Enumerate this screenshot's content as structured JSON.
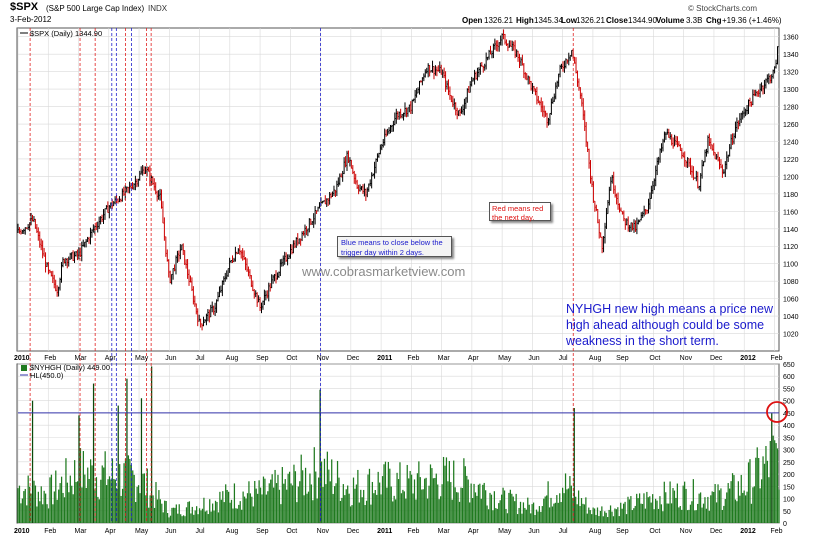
{
  "header": {
    "symbol": "$SPX",
    "description": "(S&P 500 Large Cap Index)",
    "exchange": "INDX",
    "date": "3-Feb-2012",
    "open_label": "Open",
    "open": "1326.21",
    "high_label": "High",
    "high": "1345.34",
    "low_label": "Low",
    "low": "1326.21",
    "close_label": "Close",
    "close": "1344.90",
    "volume_label": "Volume",
    "volume": "3.3B",
    "chg_label": "Chg",
    "chg": "+19.36 (+1.46%)",
    "watermark_site": "© StockCharts.com"
  },
  "colors": {
    "price_up": "#000000",
    "price_down": "#cc0000",
    "volume_bar": "#1f7a1f",
    "volume_bar_dark": "#0a4a0a",
    "red_marker": "#e02020",
    "blue_marker": "#2020cc",
    "threshold_line": "#3333aa",
    "grid": "#d9d9d9",
    "callout_text": "#1a1acc"
  },
  "annotations": {
    "watermark": "www.cobrasmarketview.com",
    "blue_note": "Blue means to close below the trigger day within 2 days.",
    "red_note": "Red means red the next day.",
    "main_note": "NYHGH new high means a price new high ahead although could be some weakness in the short term."
  },
  "chart_data": [
    {
      "type": "line",
      "title": "$SPX (Daily) 1344.90",
      "legend": [
        "$SPX (Daily) 1344.90"
      ],
      "y_axis_side": "right",
      "ylim": [
        1000,
        1370
      ],
      "yticks": [
        1020,
        1040,
        1060,
        1080,
        1100,
        1120,
        1140,
        1160,
        1180,
        1200,
        1220,
        1240,
        1260,
        1280,
        1300,
        1320,
        1340,
        1360
      ],
      "x_ticks": [
        "2010",
        "Feb",
        "Mar",
        "Apr",
        "May",
        "Jun",
        "Jul",
        "Aug",
        "Sep",
        "Oct",
        "Nov",
        "Dec",
        "2011",
        "Feb",
        "Mar",
        "Apr",
        "May",
        "Jun",
        "Jul",
        "Aug",
        "Sep",
        "Oct",
        "Nov",
        "Dec",
        "2012",
        "Feb"
      ],
      "x_tick_months": [
        0,
        1,
        2,
        3,
        4,
        5,
        6,
        7,
        8,
        9,
        10,
        11,
        12,
        13,
        14,
        15,
        16,
        17,
        18,
        19,
        19.9,
        21,
        22,
        23,
        24,
        25
      ],
      "x_months": [
        0,
        0.5,
        1,
        1.3,
        1.5,
        2,
        2.5,
        3,
        3.5,
        3.9,
        4.2,
        4.7,
        5,
        5.4,
        5.8,
        6,
        6.5,
        7,
        7.3,
        7.6,
        8,
        8.4,
        9,
        9.5,
        10,
        10.5,
        10.9,
        11.2,
        11.5,
        12,
        12.5,
        13,
        13.5,
        14,
        14.3,
        14.6,
        15,
        15.5,
        16,
        16.5,
        17,
        17.5,
        17.9,
        18.3,
        18.6,
        19,
        19.3,
        19.6,
        20,
        20.4,
        20.8,
        21.1,
        21.4,
        22,
        22.5,
        22.8,
        23.3,
        23.7,
        24,
        24.5,
        25,
        25.1
      ],
      "close_values": [
        1136,
        1150,
        1090,
        1070,
        1105,
        1110,
        1140,
        1165,
        1180,
        1195,
        1210,
        1175,
        1080,
        1120,
        1060,
        1030,
        1050,
        1100,
        1120,
        1090,
        1050,
        1080,
        1115,
        1140,
        1165,
        1185,
        1225,
        1190,
        1180,
        1235,
        1270,
        1280,
        1325,
        1320,
        1290,
        1270,
        1310,
        1335,
        1360,
        1340,
        1300,
        1265,
        1320,
        1345,
        1290,
        1180,
        1120,
        1200,
        1150,
        1140,
        1165,
        1210,
        1250,
        1225,
        1190,
        1240,
        1205,
        1255,
        1275,
        1300,
        1320,
        1344.9
      ]
    },
    {
      "type": "bar",
      "title": "$NYHGH (Daily) 449.00",
      "legend": [
        "$NYHGH (Daily) 449.00",
        "HL(450.0)"
      ],
      "y_axis_side": "right",
      "ylim": [
        0,
        650
      ],
      "yticks": [
        0,
        50,
        100,
        150,
        200,
        250,
        300,
        350,
        400,
        450,
        500,
        550,
        600,
        650
      ],
      "threshold": 450,
      "spike_months": [
        0.5,
        2.0,
        2.5,
        3.3,
        3.6,
        4.1,
        4.4,
        10.0,
        18.4,
        24.9
      ],
      "spike_values": [
        500,
        440,
        570,
        480,
        590,
        510,
        640,
        545,
        470,
        449
      ],
      "base_months": [
        0,
        1,
        2,
        3,
        4,
        5,
        6,
        7,
        8,
        9,
        10,
        11,
        12,
        13,
        14,
        15,
        16,
        17,
        18,
        19,
        20,
        21,
        22,
        23,
        24,
        25
      ],
      "base_levels": [
        180,
        150,
        260,
        240,
        230,
        60,
        90,
        140,
        150,
        200,
        270,
        180,
        210,
        200,
        230,
        210,
        120,
        80,
        200,
        60,
        80,
        130,
        150,
        130,
        190,
        330
      ]
    }
  ],
  "markers": {
    "red_months": [
      0.4,
      2.05,
      2.55,
      3.55,
      4.25,
      4.4,
      18.35
    ],
    "blue_months": [
      3.1,
      3.25,
      3.75,
      10.0
    ]
  }
}
